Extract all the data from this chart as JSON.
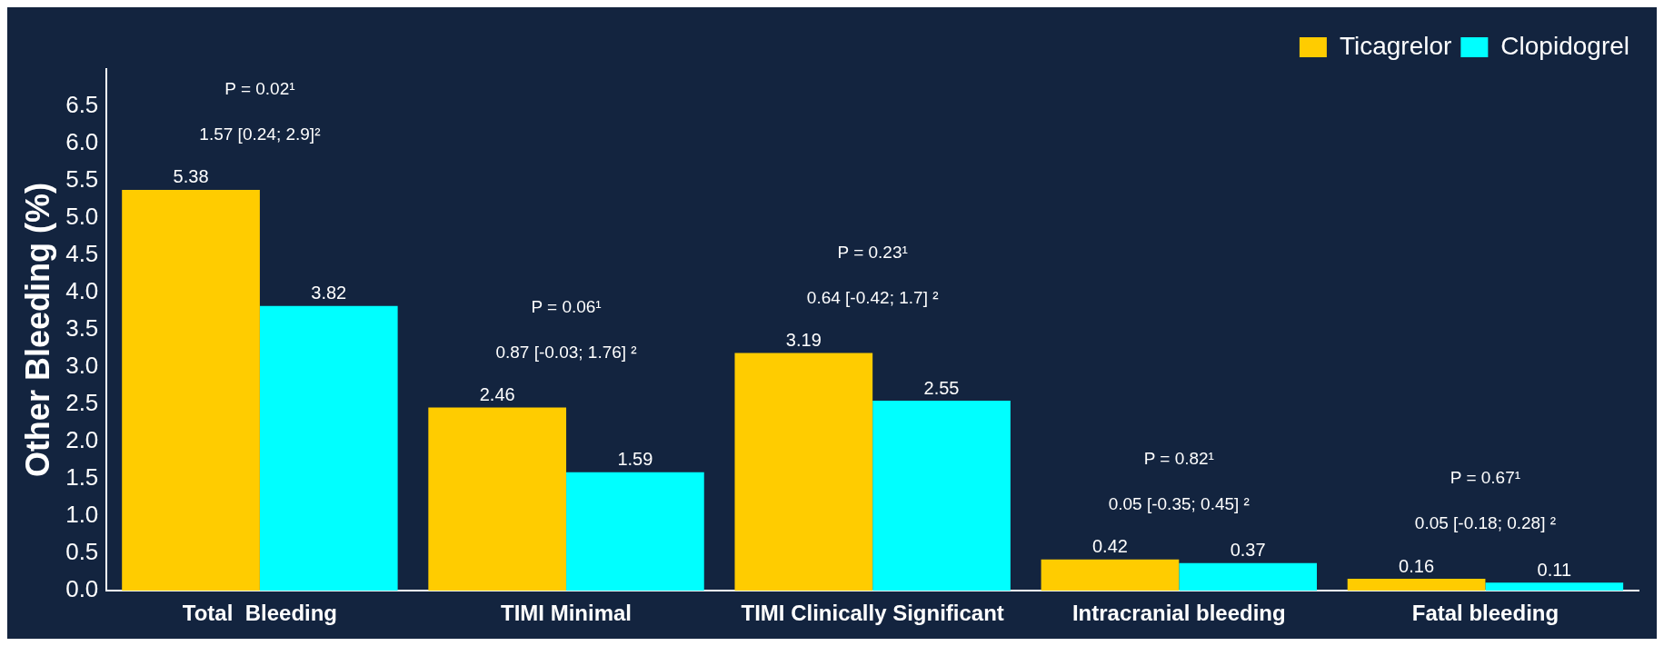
{
  "chart_data": {
    "type": "bar",
    "ylabel": "Other Bleeding (%)",
    "categories": [
      "Total  Bleeding",
      "TIMI Minimal",
      "TIMI Clinically Significant",
      "Intracranial bleeding",
      "Fatal bleeding"
    ],
    "series": [
      {
        "name": "Ticagrelor",
        "color": "#ffcc00",
        "values": [
          5.38,
          2.46,
          3.19,
          0.42,
          0.16
        ]
      },
      {
        "name": "Clopidogrel",
        "color": "#00ffff",
        "values": [
          3.82,
          1.59,
          2.55,
          0.37,
          0.11
        ]
      }
    ],
    "ylim": [
      0,
      7
    ],
    "yticks": [
      {
        "value": 0,
        "label": "0.0"
      },
      {
        "value": 0.5,
        "label": "0.5"
      },
      {
        "value": 1,
        "label": "1.0"
      },
      {
        "value": 1.5,
        "label": "1.5"
      },
      {
        "value": 2,
        "label": "2.0"
      },
      {
        "value": 2.5,
        "label": "2.5"
      },
      {
        "value": 3,
        "label": "3.0"
      },
      {
        "value": 3.5,
        "label": "3.5"
      },
      {
        "value": 4,
        "label": "4.0"
      },
      {
        "value": 4.5,
        "label": "4.5"
      },
      {
        "value": 5,
        "label": "5.0"
      },
      {
        "value": 5.5,
        "label": "5.5"
      },
      {
        "value": 6,
        "label": "6.0"
      },
      {
        "value": 6.5,
        "label": "6.5"
      }
    ],
    "grid": false,
    "legend": "top right",
    "data_labels": true,
    "annotations": [
      "P = 0.02¹",
      "1.57 [0.24; 2.9]²",
      "P = 0.06¹",
      "0.87 [-0.03; 1.76] ²",
      "P = 0.23¹",
      "0.64 [-0.42; 1.7] ²",
      "P = 0.82¹",
      "0.05 [-0.35; 0.45] ²",
      "P = 0.67¹",
      "0.05 [-0.18; 0.28] ²"
    ]
  }
}
